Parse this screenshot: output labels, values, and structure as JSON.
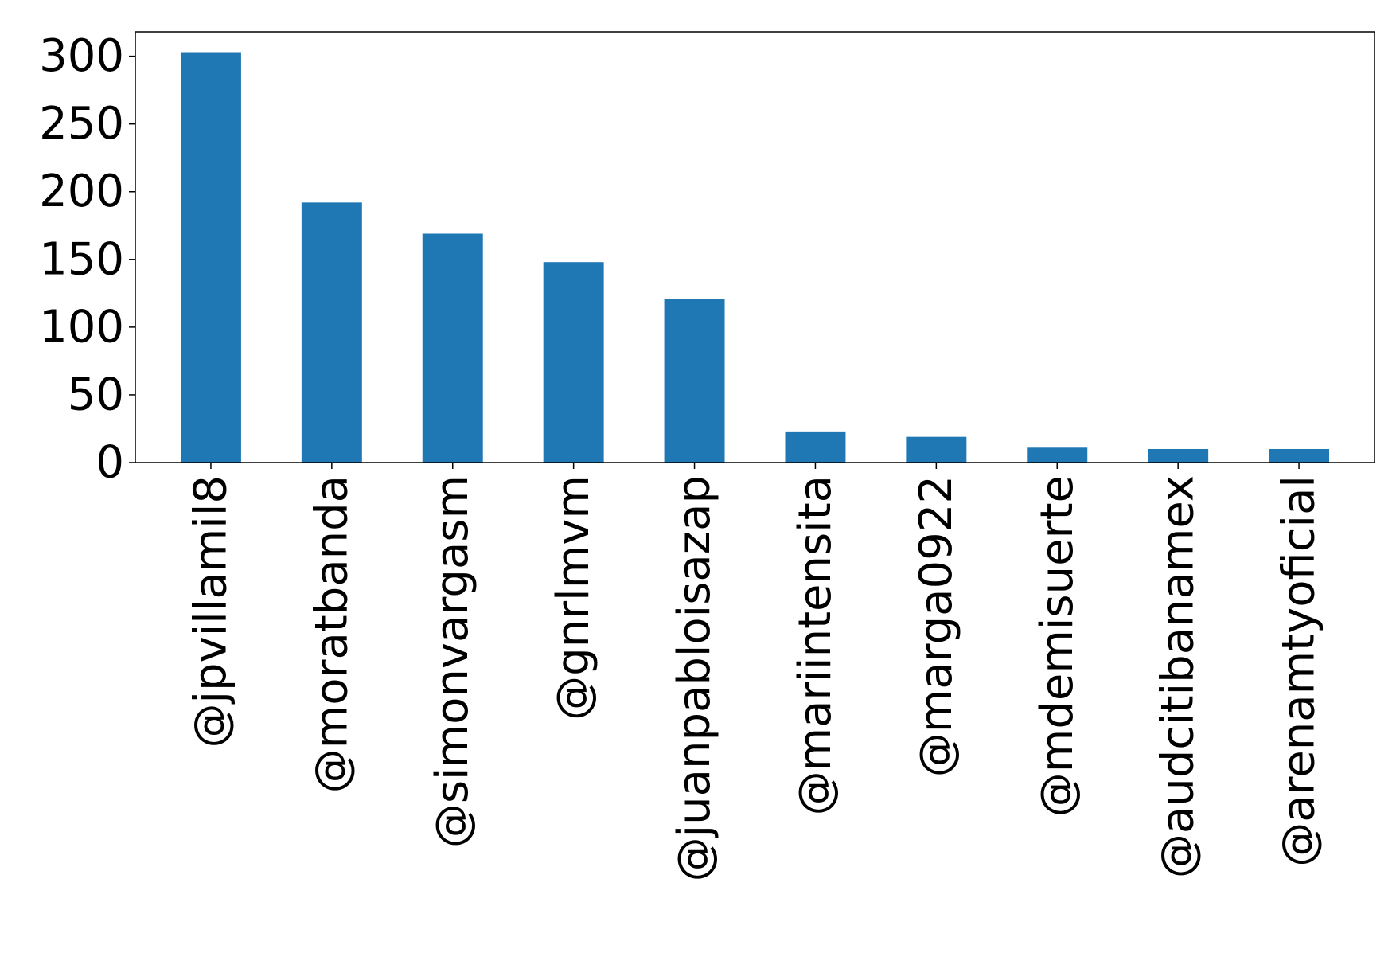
{
  "chart_data": {
    "type": "bar",
    "title": "",
    "xlabel": "",
    "ylabel": "",
    "categories": [
      "@jpvillamil8",
      "@moratbanda",
      "@simonvargasm",
      "@gnrlmvm",
      "@juanpabloisazap",
      "@mariintensita",
      "@marga0922",
      "@mdemisuerte",
      "@audcitibanamex",
      "@arenamtyoficial"
    ],
    "values": [
      303,
      192,
      169,
      148,
      121,
      23,
      19,
      11,
      10,
      10
    ],
    "ylim": [
      0,
      318
    ],
    "yticks": [
      0,
      50,
      100,
      150,
      200,
      250,
      300
    ],
    "bar_color": "#1f77b4",
    "grid": false,
    "legend": "none"
  }
}
